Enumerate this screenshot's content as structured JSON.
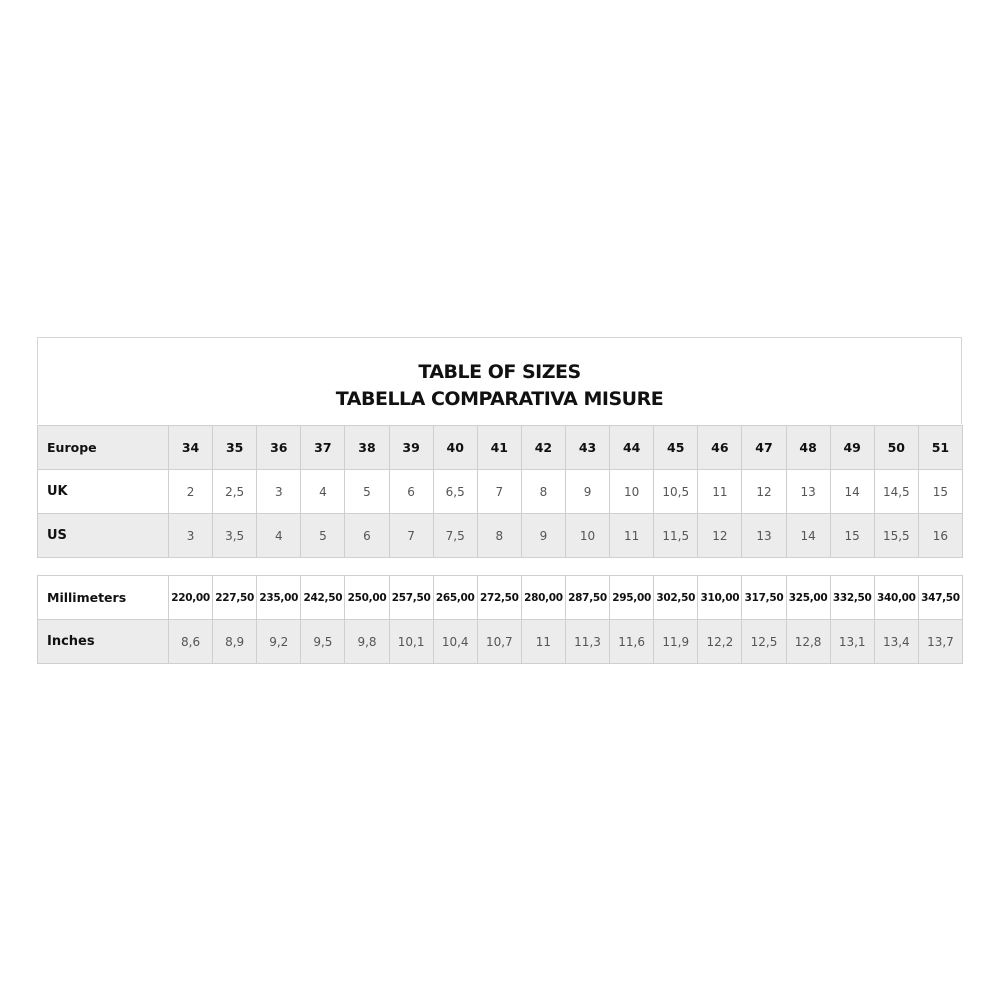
{
  "title": {
    "line1": "TABLE OF SIZES",
    "line2": "TABELLA COMPARATIVA MISURE"
  },
  "table_sizes": [
    {
      "label": "Europe",
      "style": "grey bold",
      "values": [
        "34",
        "35",
        "36",
        "37",
        "38",
        "39",
        "40",
        "41",
        "42",
        "43",
        "44",
        "45",
        "46",
        "47",
        "48",
        "49",
        "50",
        "51"
      ]
    },
    {
      "label": "UK",
      "style": "",
      "values": [
        "2",
        "2,5",
        "3",
        "4",
        "5",
        "6",
        "6,5",
        "7",
        "8",
        "9",
        "10",
        "10,5",
        "11",
        "12",
        "13",
        "14",
        "14,5",
        "15"
      ]
    },
    {
      "label": "US",
      "style": "grey",
      "values": [
        "3",
        "3,5",
        "4",
        "5",
        "6",
        "7",
        "7,5",
        "8",
        "9",
        "10",
        "11",
        "11,5",
        "12",
        "13",
        "14",
        "15",
        "15,5",
        "16"
      ]
    }
  ],
  "table_lengths": [
    {
      "label": "Millimeters",
      "style": "bold",
      "values": [
        "220,00",
        "227,50",
        "235,00",
        "242,50",
        "250,00",
        "257,50",
        "265,00",
        "272,50",
        "280,00",
        "287,50",
        "295,00",
        "302,50",
        "310,00",
        "317,50",
        "325,00",
        "332,50",
        "340,00",
        "347,50"
      ]
    },
    {
      "label": "Inches",
      "style": "grey",
      "values": [
        "8,6",
        "8,9",
        "9,2",
        "9,5",
        "9,8",
        "10,1",
        "10,4",
        "10,7",
        "11",
        "11,3",
        "11,6",
        "11,9",
        "12,2",
        "12,5",
        "12,8",
        "13,1",
        "13,4",
        "13,7"
      ]
    }
  ],
  "colors": {
    "row_grey": "#ececec",
    "border": "#cfcfcf"
  }
}
